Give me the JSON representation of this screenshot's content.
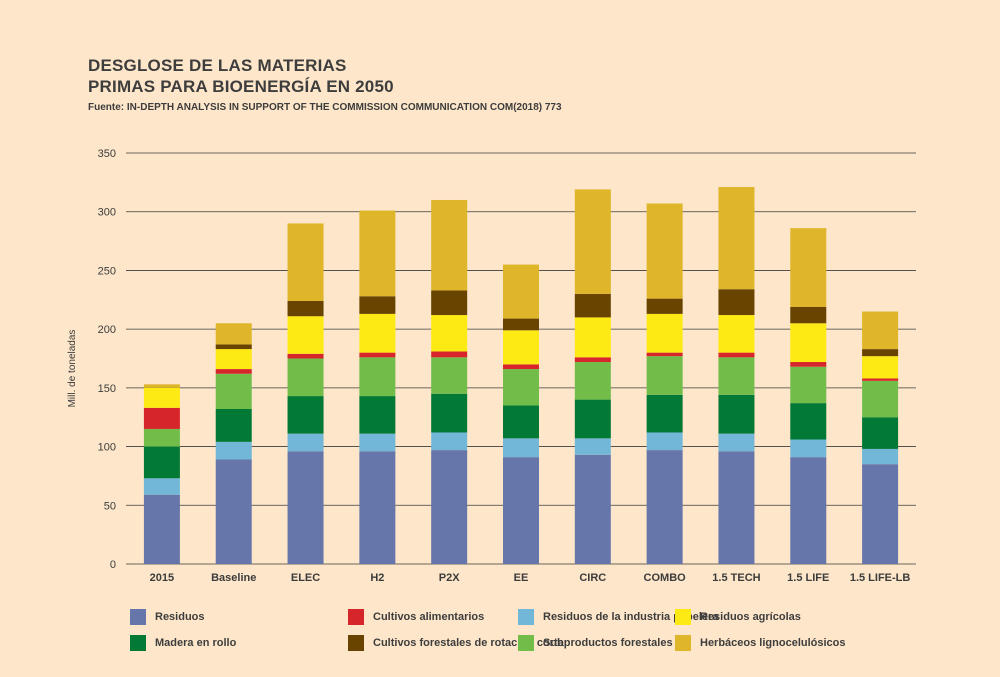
{
  "title_lines": [
    "DESGLOSE DE LAS MATERIAS",
    "PRIMAS PARA BIOENERGÍA EN 2050"
  ],
  "source": "Fuente: IN-DEPTH ANALYSIS IN SUPPORT OF THE COMMISSION COMMUNICATION COM(2018) 773",
  "chart_data": {
    "type": "bar",
    "stacked": true,
    "ylabel": "Mill. de toneladas",
    "ylim": [
      0,
      350
    ],
    "yticks": [
      0,
      50,
      100,
      150,
      200,
      250,
      300,
      350
    ],
    "grid": true,
    "legend_position": "bottom",
    "categories": [
      "2015",
      "Baseline",
      "ELEC",
      "H2",
      "P2X",
      "EE",
      "CIRC",
      "COMBO",
      "1.5 TECH",
      "1.5 LIFE",
      "1.5 LIFE-LB"
    ],
    "series": [
      {
        "name": "Residuos",
        "color": "#6676aa",
        "values": [
          59,
          89,
          96,
          96,
          97,
          91,
          93,
          97,
          96,
          91,
          85
        ]
      },
      {
        "name": "Residuos de la industria papelera",
        "color": "#72b7d8",
        "values": [
          14,
          15,
          15,
          15,
          15,
          16,
          14,
          15,
          15,
          15,
          13
        ]
      },
      {
        "name": "Madera en rollo",
        "color": "#037936",
        "values": [
          27,
          28,
          32,
          32,
          33,
          28,
          33,
          32,
          33,
          31,
          27
        ]
      },
      {
        "name": "Subproductos forestales",
        "color": "#72bd4a",
        "values": [
          15,
          30,
          32,
          33,
          31,
          31,
          32,
          33,
          32,
          31,
          31
        ]
      },
      {
        "name": "Cultivos alimentarios",
        "color": "#d6262b",
        "values": [
          18,
          4,
          4,
          4,
          5,
          4,
          4,
          3,
          4,
          4,
          2
        ]
      },
      {
        "name": "Residuos agrícolas",
        "color": "#fde913",
        "values": [
          17,
          17,
          32,
          33,
          31,
          29,
          34,
          33,
          32,
          33,
          19
        ]
      },
      {
        "name": "Cultivos forestales de rotación corta",
        "color": "#684400",
        "values": [
          0,
          4,
          13,
          15,
          21,
          10,
          20,
          13,
          22,
          14,
          6
        ]
      },
      {
        "name": "Herbáceos lignocelulósicos",
        "color": "#dfb52a",
        "values": [
          3,
          18,
          66,
          73,
          77,
          46,
          89,
          81,
          87,
          67,
          32
        ]
      }
    ]
  },
  "legend_order": [
    0,
    2,
    4,
    6,
    1,
    3,
    5,
    7
  ]
}
